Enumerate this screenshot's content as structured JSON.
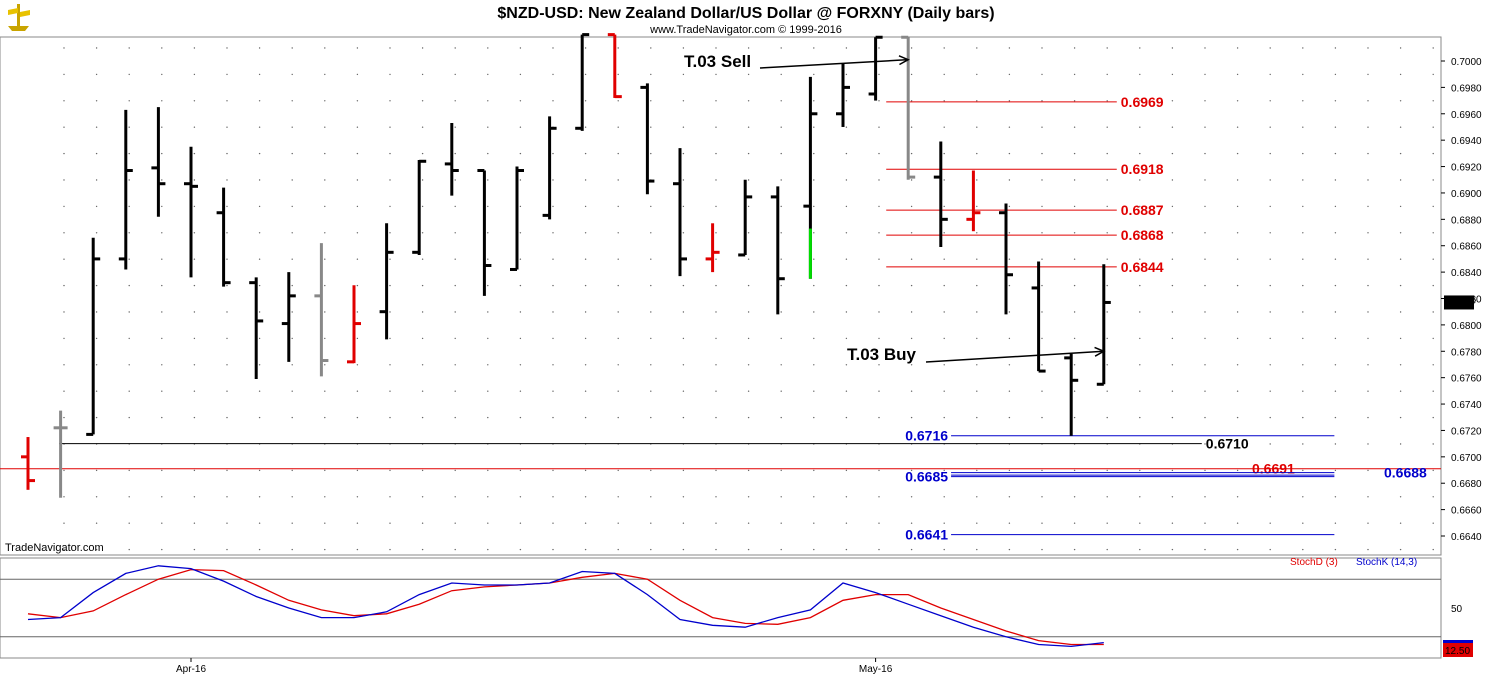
{
  "header": {
    "title": "$NZD-USD:  New Zealand Dollar/US Dollar @ FORXNY  (Daily bars)",
    "subtitle": "www.TradeNavigator.com © 1999-2016"
  },
  "footer": {
    "watermark": "TradeNavigator.com"
  },
  "chart_data": {
    "type": "ohlc",
    "price_axis": {
      "ylim": [
        0.6622,
        0.7015
      ],
      "ticks": [
        "0.7000",
        "0.6980",
        "0.6960",
        "0.6940",
        "0.6920",
        "0.6900",
        "0.6880",
        "0.6860",
        "0.6840",
        "0.6820",
        "0.6800",
        "0.6780",
        "0.6760",
        "0.6740",
        "0.6720",
        "0.6700",
        "0.6680",
        "0.6660",
        "0.6640"
      ],
      "last_price": "0.6817"
    },
    "x_labels": [
      {
        "label": "Apr-16",
        "bar": 5
      },
      {
        "label": "May-16",
        "bar": 26
      }
    ],
    "colors": {
      "up": "#000000",
      "down_red": "#e00000",
      "neutral": "#888888",
      "highlight": "#00dd00",
      "level_red": "#e00000",
      "level_blue": "#0000cc"
    },
    "bars": [
      {
        "o": 0.67,
        "h": 0.6715,
        "l": 0.6675,
        "c": 0.6682,
        "color": "red"
      },
      {
        "o": 0.6722,
        "h": 0.6735,
        "l": 0.6669,
        "c": 0.6722,
        "color": "gray"
      },
      {
        "o": 0.6717,
        "h": 0.6866,
        "l": 0.6717,
        "c": 0.685,
        "color": "black"
      },
      {
        "o": 0.685,
        "h": 0.6963,
        "l": 0.6842,
        "c": 0.6917,
        "color": "black"
      },
      {
        "o": 0.6919,
        "h": 0.6965,
        "l": 0.6882,
        "c": 0.6907,
        "color": "black"
      },
      {
        "o": 0.6907,
        "h": 0.6935,
        "l": 0.6836,
        "c": 0.6905,
        "color": "black"
      },
      {
        "o": 0.6885,
        "h": 0.6904,
        "l": 0.6829,
        "c": 0.6832,
        "color": "black"
      },
      {
        "o": 0.6832,
        "h": 0.6836,
        "l": 0.6759,
        "c": 0.6803,
        "color": "black"
      },
      {
        "o": 0.6801,
        "h": 0.684,
        "l": 0.6772,
        "c": 0.6822,
        "color": "black"
      },
      {
        "o": 0.6822,
        "h": 0.6862,
        "l": 0.6761,
        "c": 0.6773,
        "color": "gray"
      },
      {
        "o": 0.6772,
        "h": 0.683,
        "l": 0.6771,
        "c": 0.6801,
        "color": "red"
      },
      {
        "o": 0.681,
        "h": 0.6877,
        "l": 0.6789,
        "c": 0.6855,
        "color": "black"
      },
      {
        "o": 0.6855,
        "h": 0.6925,
        "l": 0.6853,
        "c": 0.6924,
        "color": "black"
      },
      {
        "o": 0.6922,
        "h": 0.6953,
        "l": 0.6898,
        "c": 0.6917,
        "color": "black"
      },
      {
        "o": 0.6917,
        "h": 0.6917,
        "l": 0.6822,
        "c": 0.6845,
        "color": "black"
      },
      {
        "o": 0.6842,
        "h": 0.692,
        "l": 0.6842,
        "c": 0.6917,
        "color": "black"
      },
      {
        "o": 0.6883,
        "h": 0.6958,
        "l": 0.688,
        "c": 0.6949,
        "color": "black"
      },
      {
        "o": 0.6949,
        "h": 0.702,
        "l": 0.6947,
        "c": 0.702,
        "color": "black"
      },
      {
        "o": 0.702,
        "h": 0.702,
        "l": 0.6972,
        "c": 0.6973,
        "color": "red"
      },
      {
        "o": 0.698,
        "h": 0.6983,
        "l": 0.6899,
        "c": 0.6909,
        "color": "black"
      },
      {
        "o": 0.6907,
        "h": 0.6934,
        "l": 0.6837,
        "c": 0.685,
        "color": "black"
      },
      {
        "o": 0.685,
        "h": 0.6877,
        "l": 0.684,
        "c": 0.6855,
        "color": "red"
      },
      {
        "o": 0.6853,
        "h": 0.691,
        "l": 0.6853,
        "c": 0.6897,
        "color": "black"
      },
      {
        "o": 0.6897,
        "h": 0.6905,
        "l": 0.6808,
        "c": 0.6835,
        "color": "black"
      },
      {
        "o": 0.689,
        "h": 0.6988,
        "l": 0.6835,
        "c": 0.696,
        "color": "black",
        "highlight_low": 0.6835,
        "highlight_high": 0.6873
      },
      {
        "o": 0.696,
        "h": 0.6998,
        "l": 0.695,
        "c": 0.698,
        "color": "black"
      },
      {
        "o": 0.6975,
        "h": 0.7018,
        "l": 0.697,
        "c": 0.7018,
        "color": "black"
      },
      {
        "o": 0.7018,
        "h": 0.7018,
        "l": 0.691,
        "c": 0.6912,
        "color": "gray"
      },
      {
        "o": 0.6912,
        "h": 0.6939,
        "l": 0.6859,
        "c": 0.688,
        "color": "black"
      },
      {
        "o": 0.688,
        "h": 0.6917,
        "l": 0.6871,
        "c": 0.6885,
        "color": "red"
      },
      {
        "o": 0.6885,
        "h": 0.6892,
        "l": 0.6808,
        "c": 0.6838,
        "color": "black"
      },
      {
        "o": 0.6828,
        "h": 0.6848,
        "l": 0.6765,
        "c": 0.6765,
        "color": "black"
      },
      {
        "o": 0.6775,
        "h": 0.6778,
        "l": 0.6716,
        "c": 0.6758,
        "color": "black"
      },
      {
        "o": 0.6755,
        "h": 0.6846,
        "l": 0.6755,
        "c": 0.6817,
        "color": "black"
      }
    ],
    "levels": [
      {
        "value": 0.6969,
        "label": "0.6969",
        "color": "red",
        "x_from": 0.615,
        "x_to": 0.775,
        "label_side": "right"
      },
      {
        "value": 0.6918,
        "label": "0.6918",
        "color": "red",
        "x_from": 0.615,
        "x_to": 0.775,
        "label_side": "right"
      },
      {
        "value": 0.6887,
        "label": "0.6887",
        "color": "red",
        "x_from": 0.615,
        "x_to": 0.775,
        "label_side": "right"
      },
      {
        "value": 0.6868,
        "label": "0.6868",
        "color": "red",
        "x_from": 0.615,
        "x_to": 0.775,
        "label_side": "right"
      },
      {
        "value": 0.6844,
        "label": "0.6844",
        "color": "red",
        "x_from": 0.615,
        "x_to": 0.775,
        "label_side": "right"
      },
      {
        "value": 0.671,
        "label": "0.6710",
        "color": "black",
        "x_from": 0.041,
        "x_to": 0.834,
        "label_side": "right"
      },
      {
        "value": 0.6691,
        "label": "0.6691",
        "color": "red",
        "x_from": 0.0,
        "x_to": 1.0,
        "label_side": "inner"
      },
      {
        "value": 0.6716,
        "label": "0.6716",
        "color": "blue",
        "x_from": 0.66,
        "x_to": 0.926,
        "label_side": "left"
      },
      {
        "value": 0.6685,
        "label": "0.6685",
        "color": "blue",
        "x_from": 0.66,
        "x_to": 0.926,
        "label_side": "left"
      },
      {
        "value": 0.6688,
        "label": "0.6688",
        "color": "blue",
        "x_from": 0.66,
        "x_to": 0.926,
        "label_side": "right"
      },
      {
        "value": 0.6641,
        "label": "0.6641",
        "color": "blue",
        "x_from": 0.66,
        "x_to": 0.926,
        "label_side": "left"
      }
    ],
    "annotations": [
      {
        "text": "T.03 Sell",
        "arrow_to_bar": 27,
        "arrow_to_price": 0.7001
      },
      {
        "text": "T.03 Buy",
        "arrow_to_bar": 33,
        "arrow_to_price": 0.678
      }
    ],
    "stochastic": {
      "legend": [
        {
          "name": "StochD (3)",
          "color": "#e00000"
        },
        {
          "name": "StochK (14,3)",
          "color": "#0000cc"
        }
      ],
      "ylim": [
        0,
        100
      ],
      "guides": [
        80,
        20
      ],
      "tick": "50",
      "last_value": "12.50",
      "stochK": [
        38,
        40,
        66,
        86,
        94,
        91,
        78,
        62,
        50,
        40,
        40,
        46,
        64,
        76,
        74,
        74,
        76,
        88,
        86,
        64,
        38,
        32,
        30,
        40,
        48,
        76,
        66,
        54,
        42,
        30,
        20,
        12,
        10,
        14
      ],
      "stochD": [
        44,
        40,
        47,
        64,
        80,
        90,
        89,
        74,
        58,
        48,
        42,
        44,
        54,
        68,
        72,
        74,
        76,
        82,
        86,
        80,
        58,
        40,
        34,
        33,
        40,
        58,
        64,
        64,
        50,
        38,
        26,
        16,
        12,
        12
      ]
    }
  }
}
